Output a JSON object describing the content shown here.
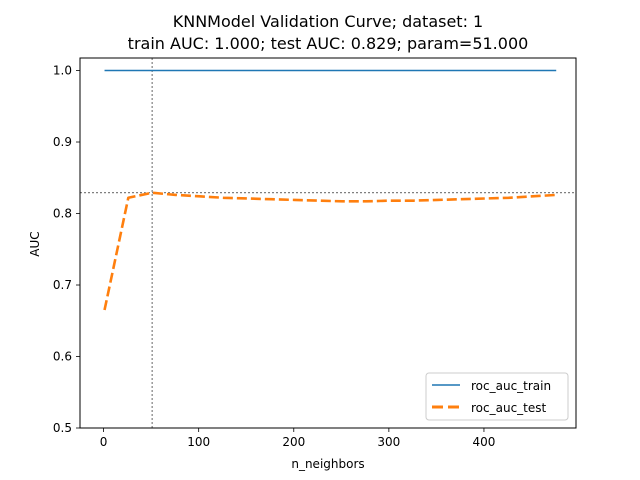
{
  "chart_data": {
    "type": "line",
    "title_line1": "KNNModel Validation Curve; dataset: 1",
    "title_line2": "train AUC: 1.000; test AUC: 0.829; param=51.000",
    "xlabel": "n_neighbors",
    "ylabel": "AUC",
    "xlim": [
      -24.8,
      496.8
    ],
    "ylim": [
      0.5,
      1.0175
    ],
    "xticks": [
      0,
      100,
      200,
      300,
      400
    ],
    "xtick_labels": [
      "0",
      "100",
      "200",
      "300",
      "400"
    ],
    "yticks": [
      0.5,
      0.6,
      0.7,
      0.8,
      0.9,
      1.0
    ],
    "ytick_labels": [
      "0.5",
      "0.6",
      "0.7",
      "0.8",
      "0.9",
      "1.0"
    ],
    "grid": false,
    "legend_position": "lower right",
    "x": [
      1,
      26,
      51,
      76,
      101,
      126,
      151,
      176,
      201,
      226,
      251,
      276,
      301,
      326,
      351,
      376,
      401,
      426,
      451,
      476
    ],
    "series": [
      {
        "name": "roc_auc_train",
        "color": "#1f77b4",
        "style": "solid",
        "values": [
          1.0,
          1.0,
          1.0,
          1.0,
          1.0,
          1.0,
          1.0,
          1.0,
          1.0,
          1.0,
          1.0,
          1.0,
          1.0,
          1.0,
          1.0,
          1.0,
          1.0,
          1.0,
          1.0,
          1.0
        ]
      },
      {
        "name": "roc_auc_test",
        "color": "#ff7f0e",
        "style": "dashed",
        "values": [
          0.665,
          0.822,
          0.829,
          0.826,
          0.824,
          0.822,
          0.821,
          0.82,
          0.819,
          0.818,
          0.817,
          0.817,
          0.818,
          0.818,
          0.819,
          0.82,
          0.821,
          0.822,
          0.824,
          0.826
        ]
      }
    ],
    "reference_lines": {
      "x": 51,
      "y": 0.829
    }
  }
}
